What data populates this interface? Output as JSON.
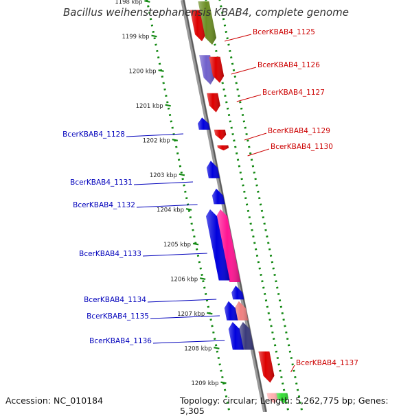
{
  "title": "Bacillus weihenstephanensis KBAB4, complete genome",
  "footer": {
    "accession": "Accession: NC_010184",
    "stats": "Topology: circular; Length: 5,262,775 bp; Genes: 5,305"
  },
  "colors": {
    "forward_labels": "#cc0000",
    "reverse_labels": "#0000bb",
    "backbone": "#888888",
    "ticks": "#118811"
  },
  "ruler": {
    "ticks": [
      {
        "kbp": 1198,
        "label": "1198 kbp"
      },
      {
        "kbp": 1199,
        "label": "1199 kbp"
      },
      {
        "kbp": 1200,
        "label": "1200 kbp"
      },
      {
        "kbp": 1201,
        "label": "1201 kbp"
      },
      {
        "kbp": 1202,
        "label": "1202 kbp"
      },
      {
        "kbp": 1203,
        "label": "1203 kbp"
      },
      {
        "kbp": 1204,
        "label": "1204 kbp"
      },
      {
        "kbp": 1205,
        "label": "1205 kbp"
      },
      {
        "kbp": 1206,
        "label": "1206 kbp"
      },
      {
        "kbp": 1207,
        "label": "1207 kbp"
      },
      {
        "kbp": 1208,
        "label": "1208 kbp"
      },
      {
        "kbp": 1209,
        "label": "1209 kbp"
      }
    ]
  },
  "genes": [
    {
      "label": "BcerKBAB4_1125",
      "strand": "forward",
      "color": "#dd0000",
      "start_kbp": 1198.25,
      "end_kbp": 1199.15
    },
    {
      "label": "",
      "strand": "forward",
      "color": "#6b8e23",
      "start_kbp": 1198.0,
      "end_kbp": 1199.25
    },
    {
      "label": "BcerKBAB4_1126",
      "strand": "forward",
      "color": "#7060cc",
      "start_kbp": 1199.55,
      "end_kbp": 1200.4
    },
    {
      "label": "",
      "strand": "forward",
      "color": "#dd0000",
      "start_kbp": 1199.6,
      "end_kbp": 1200.35
    },
    {
      "label": "BcerKBAB4_1127",
      "strand": "forward",
      "color": "#dd0000",
      "start_kbp": 1200.65,
      "end_kbp": 1201.2
    },
    {
      "label": "BcerKBAB4_1128",
      "strand": "reverse",
      "color": "#0000dd",
      "start_kbp": 1201.35,
      "end_kbp": 1201.7
    },
    {
      "label": "BcerKBAB4_1129",
      "strand": "forward",
      "color": "#dd0000",
      "start_kbp": 1201.7,
      "end_kbp": 1202.0
    },
    {
      "label": "BcerKBAB4_1130",
      "strand": "forward",
      "color": "#dd0000",
      "start_kbp": 1202.15,
      "end_kbp": 1202.3
    },
    {
      "label": "BcerKBAB4_1131",
      "strand": "reverse",
      "color": "#0000dd",
      "start_kbp": 1202.6,
      "end_kbp": 1203.1
    },
    {
      "label": "BcerKBAB4_1132",
      "strand": "reverse",
      "color": "#0000dd",
      "start_kbp": 1203.4,
      "end_kbp": 1203.85
    },
    {
      "label": "BcerKBAB4_1133",
      "strand": "reverse",
      "color": "#ff1493",
      "start_kbp": 1204.0,
      "end_kbp": 1206.1
    },
    {
      "label": "",
      "strand": "reverse",
      "color": "#0000dd",
      "start_kbp": 1204.0,
      "end_kbp": 1206.05
    },
    {
      "label": "BcerKBAB4_1134",
      "strand": "reverse",
      "color": "#0000dd",
      "start_kbp": 1206.2,
      "end_kbp": 1206.6
    },
    {
      "label": "BcerKBAB4_1135",
      "strand": "reverse",
      "color": "#f08080",
      "start_kbp": 1206.65,
      "end_kbp": 1207.2
    },
    {
      "label": "",
      "strand": "reverse",
      "color": "#0000dd",
      "start_kbp": 1206.65,
      "end_kbp": 1207.2
    },
    {
      "label": "BcerKBAB4_1136",
      "strand": "reverse",
      "color": "#3a3a7a",
      "start_kbp": 1207.25,
      "end_kbp": 1208.05
    },
    {
      "label": "",
      "strand": "reverse",
      "color": "#0000dd",
      "start_kbp": 1207.25,
      "end_kbp": 1208.05
    },
    {
      "label": "BcerKBAB4_1137",
      "strand": "forward",
      "color": "#dd0000",
      "start_kbp": 1208.1,
      "end_kbp": 1209.0
    },
    {
      "label": "",
      "strand": "forward",
      "color": "#ffb0b0",
      "start_kbp": 1209.3,
      "end_kbp": 1209.6
    },
    {
      "label": "",
      "strand": "forward",
      "color": "#33dd33",
      "start_kbp": 1209.3,
      "end_kbp": 1209.6
    }
  ]
}
